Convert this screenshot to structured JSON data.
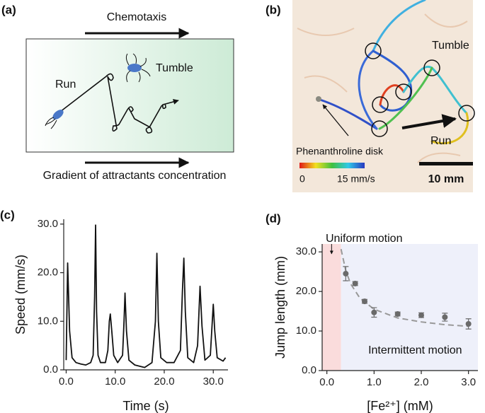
{
  "panel_a": {
    "label": "(a)",
    "top_arrow": "Chemotaxis",
    "run": "Run",
    "tumble": "Tumble",
    "bottom_arrow": "Gradient of attractants concentration"
  },
  "panel_b": {
    "label": "(b)",
    "tumble": "Tumble",
    "run": "Run",
    "disk": "Phenanthroline disk",
    "colorbar_min": "0",
    "colorbar_max": "15 mm/s",
    "scale_bar": "10 mm"
  },
  "chart_data": [
    {
      "type": "line",
      "label": "(c)",
      "xlabel": "Time (s)",
      "ylabel": "Speed (mm/s)",
      "color": "#111111",
      "x": [
        0,
        0.3,
        0.7,
        1.2,
        2,
        3,
        4,
        5,
        5.5,
        5.8,
        6,
        6.2,
        6.5,
        7,
        8,
        8.5,
        8.8,
        9,
        9.3,
        9.7,
        10.5,
        11.5,
        11.8,
        12,
        12.3,
        12.8,
        14,
        16,
        17.5,
        18.2,
        18.5,
        18.8,
        19.3,
        20.5,
        22,
        23.3,
        23.7,
        24,
        24.3,
        24.8,
        26,
        26.8,
        27.3,
        27.7,
        28.3,
        29.4,
        29.8,
        30,
        30.3,
        30.8,
        32,
        32.5
      ],
      "values": [
        2,
        22,
        8,
        2.5,
        1.5,
        1.2,
        1,
        1.5,
        3,
        15,
        29.8,
        12,
        3,
        1.5,
        1.5,
        4,
        10,
        11.5,
        8,
        3,
        1.5,
        3,
        10,
        15.8,
        8,
        2,
        1,
        0.5,
        1.5,
        10,
        24,
        10,
        2.5,
        1.5,
        1.5,
        4,
        16,
        23,
        12,
        2.5,
        1.5,
        5,
        17.2,
        9,
        2,
        3,
        10,
        13.5,
        8,
        2.5,
        1.8,
        2.5
      ],
      "xlim": [
        -0.5,
        33
      ],
      "ylim": [
        0,
        31
      ],
      "xticks": [
        {
          "value": 0,
          "label": "0.0"
        },
        {
          "value": 10,
          "label": "10.0"
        },
        {
          "value": 20,
          "label": "20.0"
        },
        {
          "value": 30,
          "label": "30.0"
        }
      ],
      "yticks": [
        {
          "value": 0,
          "label": "0.0"
        },
        {
          "value": 10,
          "label": "10.0"
        },
        {
          "value": 20,
          "label": "20.0"
        },
        {
          "value": 30,
          "label": "30.0"
        }
      ]
    },
    {
      "type": "scatter",
      "label": "(d)",
      "xlabel": "[Fe²⁺] (mM)",
      "ylabel": "Jump length (mm)",
      "color": "#6a6a6a",
      "x": [
        0.4,
        0.6,
        0.8,
        1.0,
        1.5,
        2.0,
        2.5,
        3.0
      ],
      "values": [
        24.5,
        22,
        17.5,
        14.7,
        14.3,
        14,
        13.5,
        11.8
      ],
      "errors": [
        1.8,
        0.5,
        0.5,
        1.2,
        0.5,
        0.6,
        1,
        1.3
      ],
      "fit": {
        "color": "#999999",
        "x": [
          0.3,
          0.4,
          0.5,
          0.7,
          1,
          1.5,
          2,
          2.5,
          3
        ],
        "values": [
          30.7,
          25.3,
          22,
          18.3,
          15.5,
          13.3,
          12.3,
          11.6,
          11.2
        ]
      },
      "regions": [
        {
          "name": "Uniform motion",
          "range": [
            -0.1,
            0.3
          ],
          "color": "#fadcdc"
        },
        {
          "name": "Intermittent motion",
          "range": [
            0.3,
            3.2
          ],
          "color": "#eef0fa"
        }
      ],
      "xlim": [
        -0.1,
        3.2
      ],
      "ylim": [
        0,
        32
      ],
      "xticks": [
        {
          "value": 0,
          "label": "0.0"
        },
        {
          "value": 1,
          "label": "1.0"
        },
        {
          "value": 2,
          "label": "2.0"
        },
        {
          "value": 3,
          "label": "3.0"
        }
      ],
      "yticks": [
        {
          "value": 0,
          "label": "0.0"
        },
        {
          "value": 10,
          "label": "10.0"
        },
        {
          "value": 20,
          "label": "20.0"
        },
        {
          "value": 30,
          "label": "30.0"
        }
      ]
    }
  ]
}
